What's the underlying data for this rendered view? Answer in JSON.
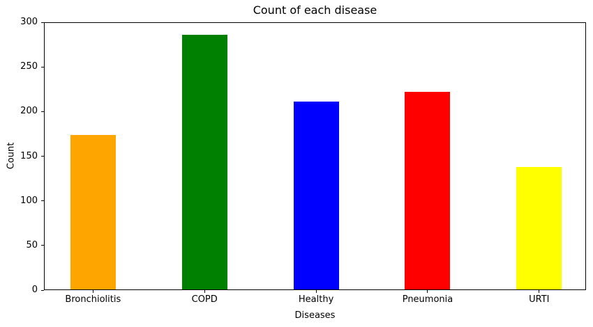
{
  "chart_data": {
    "type": "bar",
    "title": "Count of each disease",
    "xlabel": "Diseases",
    "ylabel": "Count",
    "categories": [
      "Bronchiolitis",
      "COPD",
      "Healthy",
      "Pneumonia",
      "URTI"
    ],
    "values": [
      174,
      286,
      211,
      222,
      138
    ],
    "bar_colors": [
      "#FFA500",
      "#008000",
      "#0000FF",
      "#FF0000",
      "#FFFF00"
    ],
    "ylim": [
      0,
      300
    ],
    "yticks": [
      0,
      50,
      100,
      150,
      200,
      250,
      300
    ],
    "grid": false,
    "legend": false,
    "axis_color": "#000000",
    "background_color": "#FFFFFF"
  }
}
